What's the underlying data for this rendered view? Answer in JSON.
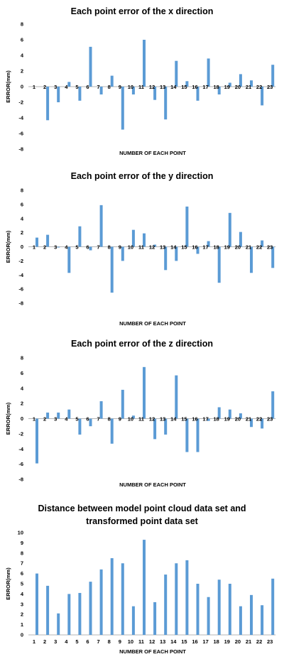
{
  "chart_data": [
    {
      "type": "bar",
      "title": "Each point error of the x direction",
      "xlabel": "NUMBER OF EACH POINT",
      "ylabel": "ERROR(mm)",
      "categories": [
        "1",
        "2",
        "3",
        "4",
        "5",
        "6",
        "7",
        "8",
        "9",
        "10",
        "11",
        "12",
        "13",
        "14",
        "15",
        "16",
        "17",
        "18",
        "19",
        "20",
        "21",
        "22",
        "23"
      ],
      "values": [
        0,
        -4.3,
        -2.0,
        0.6,
        -1.8,
        5.1,
        -1.0,
        1.4,
        -5.5,
        -1.0,
        6.0,
        -1.7,
        -4.2,
        3.3,
        0.7,
        -1.8,
        3.6,
        -1.0,
        0.5,
        1.6,
        0.8,
        -2.4,
        2.8
      ],
      "ylim": [
        -8,
        8
      ],
      "yticks": [
        8,
        6,
        4,
        2,
        0,
        -2,
        -4,
        -6,
        -8
      ],
      "grid": false,
      "legend": "none",
      "color": "#5b9bd5"
    },
    {
      "type": "bar",
      "title": "Each point error of the y direction",
      "xlabel": "NUMBER OF EACH POINT",
      "ylabel": "ERROR(mm)",
      "categories": [
        "1",
        "2",
        "3",
        "4",
        "5",
        "6",
        "7",
        "8",
        "9",
        "10",
        "11",
        "12",
        "13",
        "14",
        "15",
        "16",
        "17",
        "18",
        "19",
        "20",
        "21",
        "22",
        "23"
      ],
      "values": [
        1.3,
        1.7,
        -0.1,
        -3.7,
        2.9,
        -0.5,
        5.9,
        -6.5,
        -2.0,
        2.4,
        1.9,
        0.3,
        -3.3,
        -2.0,
        5.7,
        -1.0,
        0.8,
        -5.1,
        4.8,
        2.1,
        -3.7,
        0.9,
        -3.0
      ],
      "ylim": [
        -8,
        8
      ],
      "yticks": [
        8,
        6,
        4,
        2,
        0,
        -2,
        -4,
        -6,
        -8
      ],
      "grid": false,
      "legend": "none",
      "color": "#5b9bd5"
    },
    {
      "type": "bar",
      "title": "Each point error of the z direction",
      "xlabel": "NUMBER OF EACH POINT",
      "ylabel": "ERROR(mm)",
      "categories": [
        "1",
        "2",
        "3",
        "4",
        "5",
        "6",
        "7",
        "8",
        "9",
        "10",
        "11",
        "12",
        "13",
        "14",
        "15",
        "16",
        "17",
        "18",
        "19",
        "20",
        "21",
        "22",
        "23"
      ],
      "values": [
        -5.9,
        0.8,
        0.8,
        1.2,
        -2.1,
        -1.0,
        2.3,
        -3.3,
        3.8,
        0.4,
        6.8,
        -2.7,
        -2.1,
        5.7,
        -4.4,
        -4.4,
        -0.3,
        1.5,
        1.2,
        0.7,
        -1.1,
        -1.3,
        3.6
      ],
      "ylim": [
        -8,
        8
      ],
      "yticks": [
        8,
        6,
        4,
        2,
        0,
        -2,
        -4,
        -6,
        -8
      ],
      "grid": false,
      "legend": "none",
      "color": "#5b9bd5"
    },
    {
      "type": "bar",
      "title": "Distance between model point cloud data set and transformed point data set",
      "title_lines": [
        "Distance between model point cloud data set and",
        "transformed point data set"
      ],
      "xlabel": "NUMBER OF EACH POINT",
      "ylabel": "ERROR(mm)",
      "categories": [
        "1",
        "2",
        "3",
        "4",
        "5",
        "6",
        "7",
        "8",
        "9",
        "10",
        "11",
        "12",
        "13",
        "14",
        "15",
        "16",
        "17",
        "18",
        "19",
        "20",
        "21",
        "22",
        "23"
      ],
      "values": [
        6.0,
        4.8,
        2.1,
        4.0,
        4.1,
        5.2,
        6.4,
        7.5,
        7.0,
        2.8,
        9.3,
        3.2,
        5.9,
        7.0,
        7.3,
        5.0,
        3.7,
        5.4,
        5.0,
        2.8,
        3.9,
        2.9,
        5.5
      ],
      "ylim": [
        0,
        10
      ],
      "yticks": [
        10,
        9,
        8,
        7,
        6,
        5,
        4,
        3,
        2,
        1,
        0
      ],
      "grid": false,
      "legend": "none",
      "color": "#5b9bd5"
    }
  ]
}
